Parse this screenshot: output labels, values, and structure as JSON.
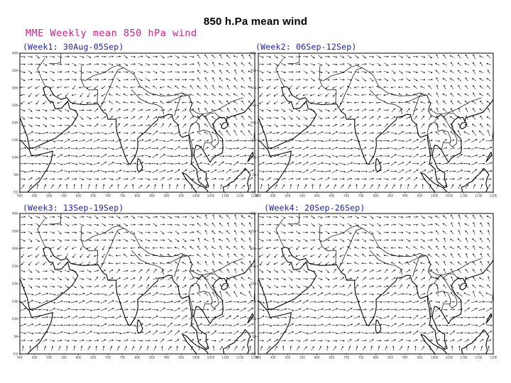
{
  "slide_title": "850 h.Pa  mean wind",
  "figure_title": "MME Weekly mean 850 hPa wind",
  "panels": [
    {
      "label": "(Week1: 30Aug-05Sep)"
    },
    {
      "label": "(Week2: 06Sep-12Sep)"
    },
    {
      "label": "(Week3: 13Sep-19Sep)"
    },
    {
      "label": "(Week4: 20Sep-26Sep)"
    }
  ],
  "map_extent": {
    "lon": [
      40,
      120
    ],
    "lat": [
      0,
      40
    ]
  },
  "lat_ticks": [
    "40N",
    "35N",
    "30N",
    "25N",
    "20N",
    "15N",
    "10N",
    "5N",
    "EQ"
  ],
  "lon_ticks": [
    "40E",
    "45E",
    "50E",
    "55E",
    "60E",
    "65E",
    "70E",
    "75E",
    "80E",
    "85E",
    "90E",
    "95E",
    "100E",
    "105E",
    "110E",
    "115E",
    "120E"
  ],
  "colors": {
    "title": "#d0208c",
    "week_label": "#1c20a8",
    "vectors": "#000000",
    "coast": "#000000"
  }
}
